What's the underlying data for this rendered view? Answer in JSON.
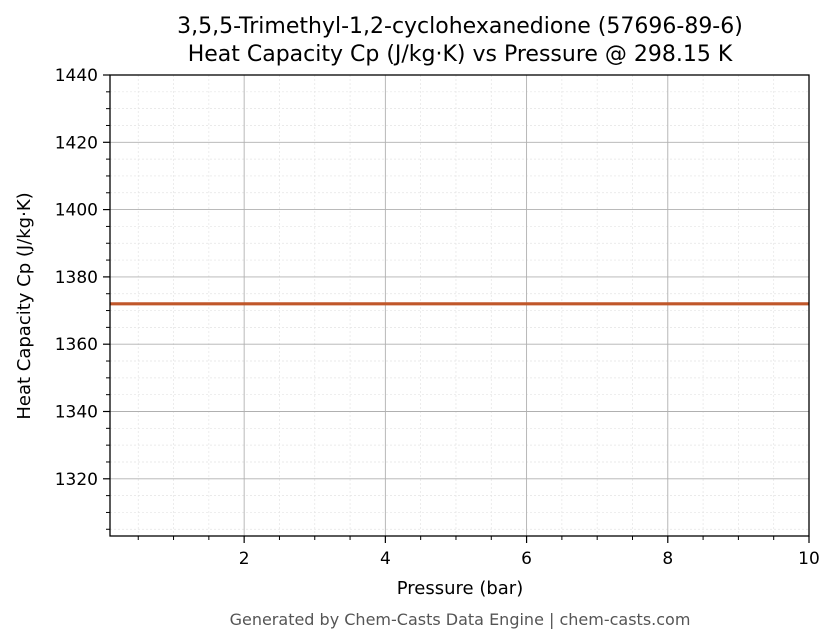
{
  "chart_data": {
    "type": "line",
    "title": "3,5,5-Trimethyl-1,2-cyclohexanedione (57696-89-6)",
    "subtitle": "Heat Capacity Cp (J/kg·K) vs Pressure @ 298.15 K",
    "xlabel": "Pressure (bar)",
    "ylabel": "Heat Capacity Cp (J/kg·K)",
    "xlim": [
      0.1,
      10
    ],
    "ylim": [
      1303,
      1440
    ],
    "x_ticks": [
      2,
      4,
      6,
      8,
      10
    ],
    "y_ticks": [
      1320,
      1340,
      1360,
      1380,
      1400,
      1420,
      1440
    ],
    "grid": true,
    "series": [
      {
        "color": "#c0572a",
        "x": [
          0.1,
          10
        ],
        "y": [
          1372,
          1372
        ]
      }
    ]
  },
  "footer": "Generated by Chem-Casts Data Engine | chem-casts.com"
}
